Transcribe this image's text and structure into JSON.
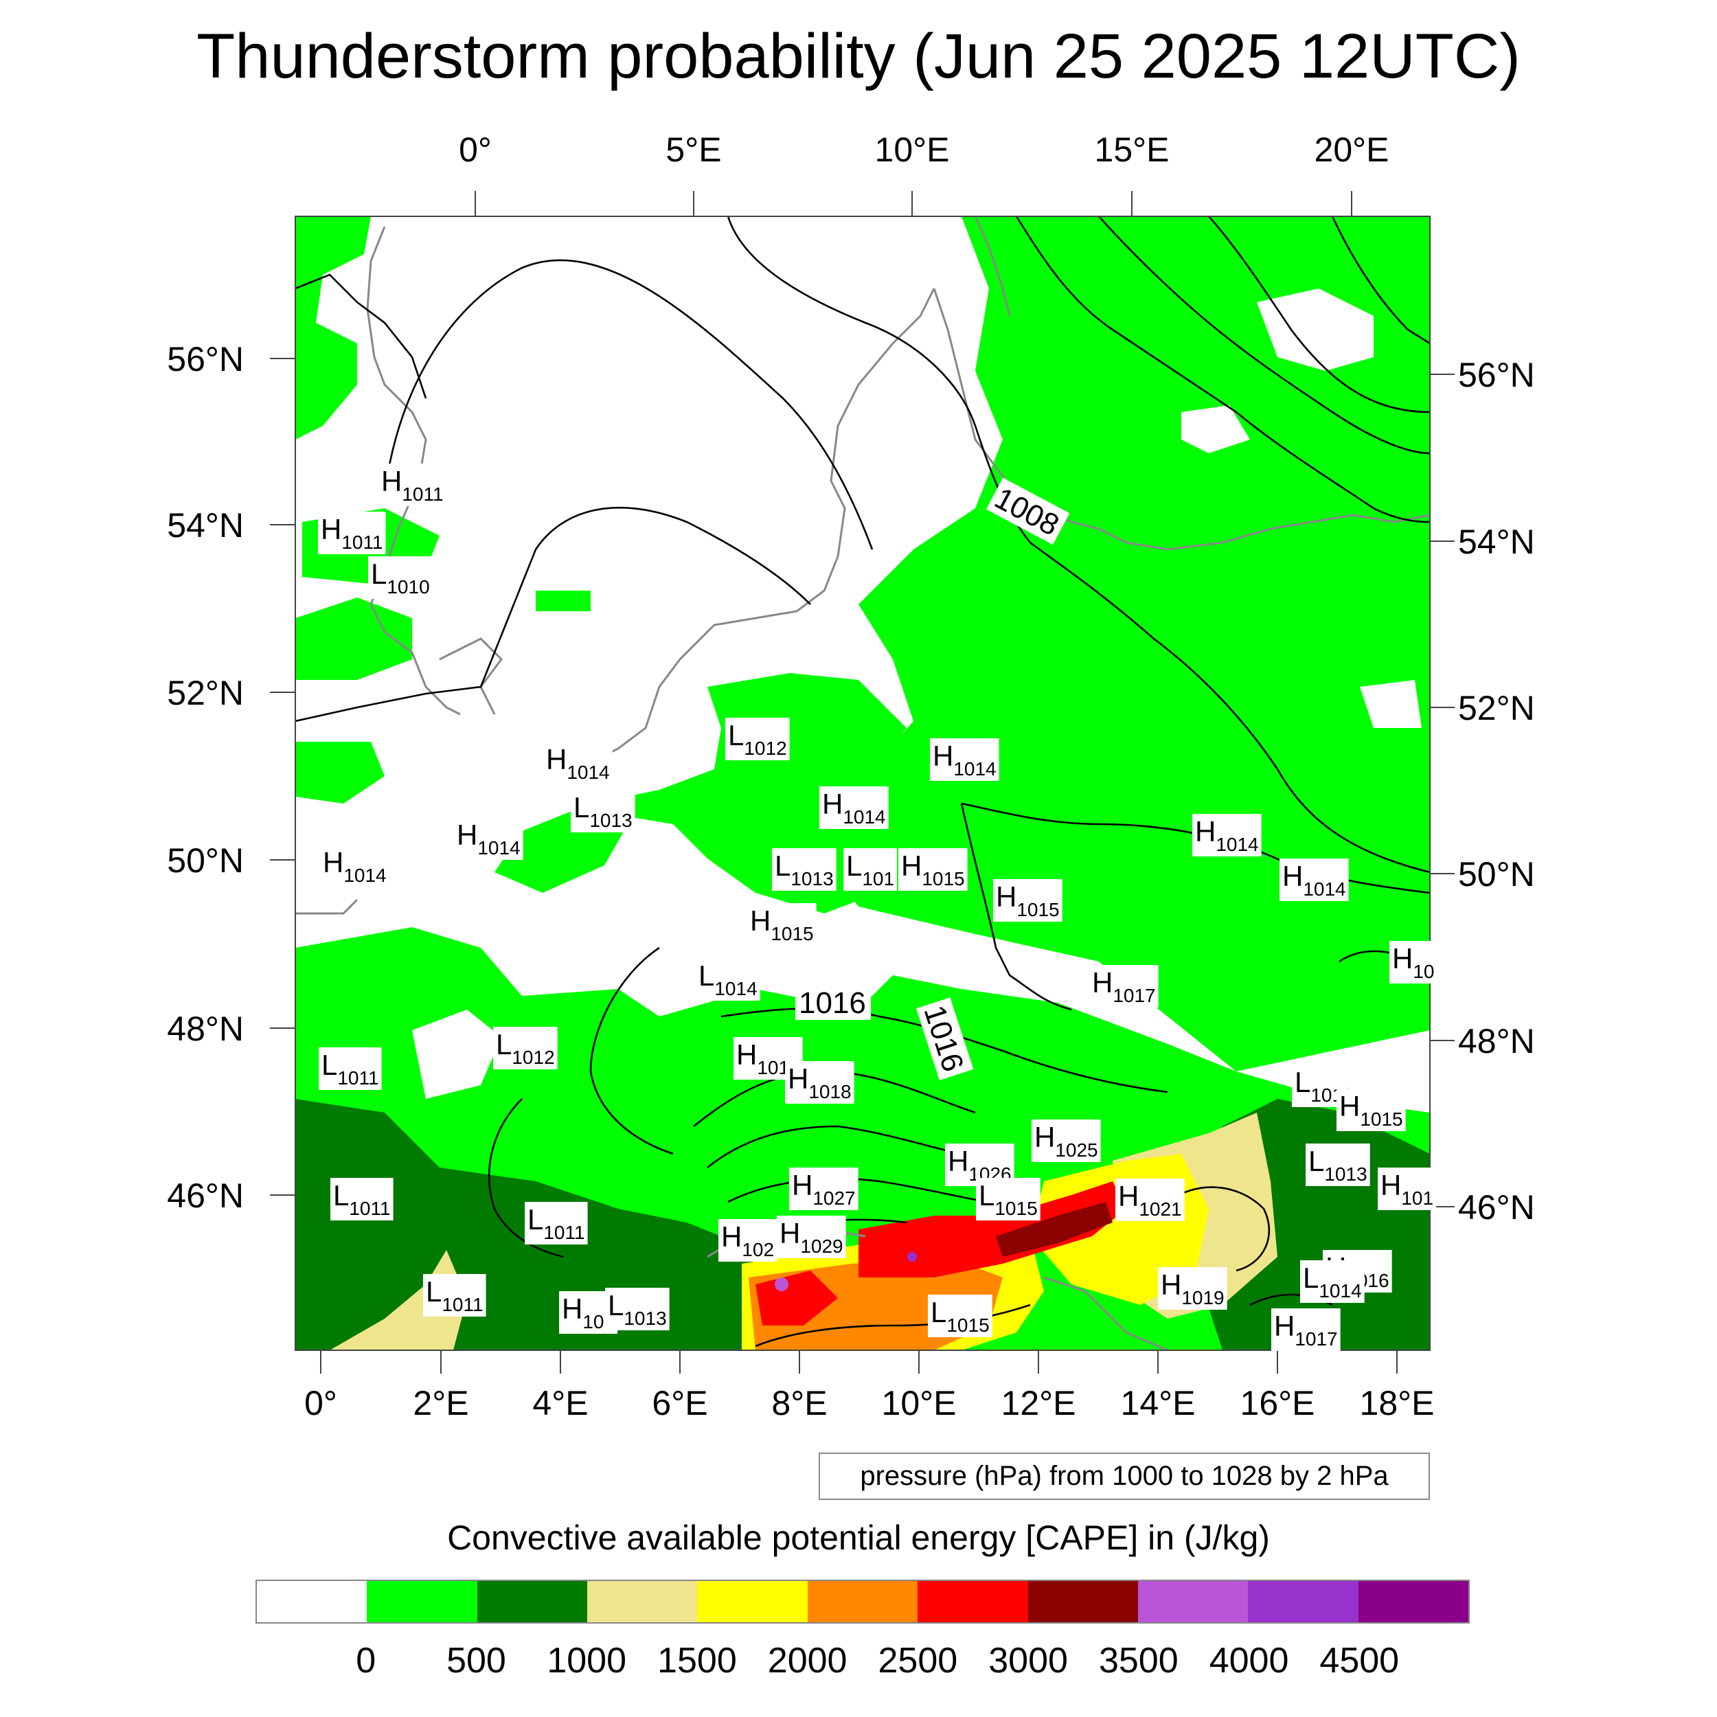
{
  "title": "Thunderstorm probability (Jun 25 2025 12UTC)",
  "top_axis_labels": [
    "0°",
    "5°E",
    "10°E",
    "15°E",
    "20°E"
  ],
  "bottom_axis_labels": [
    "0°",
    "2°E",
    "4°E",
    "6°E",
    "8°E",
    "10°E",
    "12°E",
    "14°E",
    "16°E",
    "18°E"
  ],
  "left_axis_labels": [
    "56°N",
    "54°N",
    "52°N",
    "50°N",
    "48°N",
    "46°N"
  ],
  "right_axis_labels": [
    "56°N",
    "54°N",
    "52°N",
    "50°N",
    "48°N",
    "46°N"
  ],
  "pressure_note": "pressure (hPa) from 1000 to 1028 by 2 hPa",
  "colorbar_title": "Convective available potential energy [CAPE] in (J/kg)",
  "colorbar_colors": [
    "#ffffff",
    "#00ff00",
    "#007a00",
    "#efe58c",
    "#ffff00",
    "#ff8800",
    "#ff0000",
    "#8b0000",
    "#b955d6",
    "#9932cc",
    "#8b008b"
  ],
  "colorbar_labels": [
    "0",
    "500",
    "1000",
    "1500",
    "2000",
    "2500",
    "3000",
    "3500",
    "4000",
    "4500"
  ],
  "pressure_markers": [
    {
      "kind": "H",
      "value": "1011"
    },
    {
      "kind": "H",
      "value": "1011"
    },
    {
      "kind": "L",
      "value": "1010"
    },
    {
      "kind": "L",
      "value": "1012"
    },
    {
      "kind": "H",
      "value": "1014"
    },
    {
      "kind": "H",
      "value": "1014"
    },
    {
      "kind": "L",
      "value": "1013"
    },
    {
      "kind": "H",
      "value": "1014"
    },
    {
      "kind": "H",
      "value": "1014"
    },
    {
      "kind": "H",
      "value": "1014"
    },
    {
      "kind": "L",
      "value": "1013"
    },
    {
      "kind": "L",
      "value": "101"
    },
    {
      "kind": "H",
      "value": "1015"
    },
    {
      "kind": "H",
      "value": "1014"
    },
    {
      "kind": "H",
      "value": "1014"
    },
    {
      "kind": "H",
      "value": "1015"
    },
    {
      "kind": "H",
      "value": "1015"
    },
    {
      "kind": "L",
      "value": "1014"
    },
    {
      "kind": "H",
      "value": "1017"
    },
    {
      "kind": "L",
      "value": "1011"
    },
    {
      "kind": "L",
      "value": "1012"
    },
    {
      "kind": "H",
      "value": "1017"
    },
    {
      "kind": "H",
      "value": "1018"
    },
    {
      "kind": "L",
      "value": "1013"
    },
    {
      "kind": "H",
      "value": "1025"
    },
    {
      "kind": "H",
      "value": "1026"
    },
    {
      "kind": "L",
      "value": "1015"
    },
    {
      "kind": "H",
      "value": "1027"
    },
    {
      "kind": "H",
      "value": "1021"
    },
    {
      "kind": "L",
      "value": "1013"
    },
    {
      "kind": "L",
      "value": "1011"
    },
    {
      "kind": "L",
      "value": "1011"
    },
    {
      "kind": "H",
      "value": "102"
    },
    {
      "kind": "H",
      "value": "1029"
    },
    {
      "kind": "L",
      "value": "1011"
    },
    {
      "kind": "H",
      "value": "10.."
    },
    {
      "kind": "L",
      "value": "1013"
    },
    {
      "kind": "L",
      "value": "1015"
    },
    {
      "kind": "H",
      "value": "1019"
    },
    {
      "kind": "H",
      "value": "1016"
    },
    {
      "kind": "H",
      "value": "1017"
    },
    {
      "kind": "L",
      "value": "1014"
    },
    {
      "kind": "H",
      "value": "1015"
    },
    {
      "kind": "H",
      "value": "10"
    },
    {
      "kind": "H",
      "value": "101"
    }
  ],
  "isobar_labels": [
    "1008",
    "1016",
    "1016"
  ]
}
